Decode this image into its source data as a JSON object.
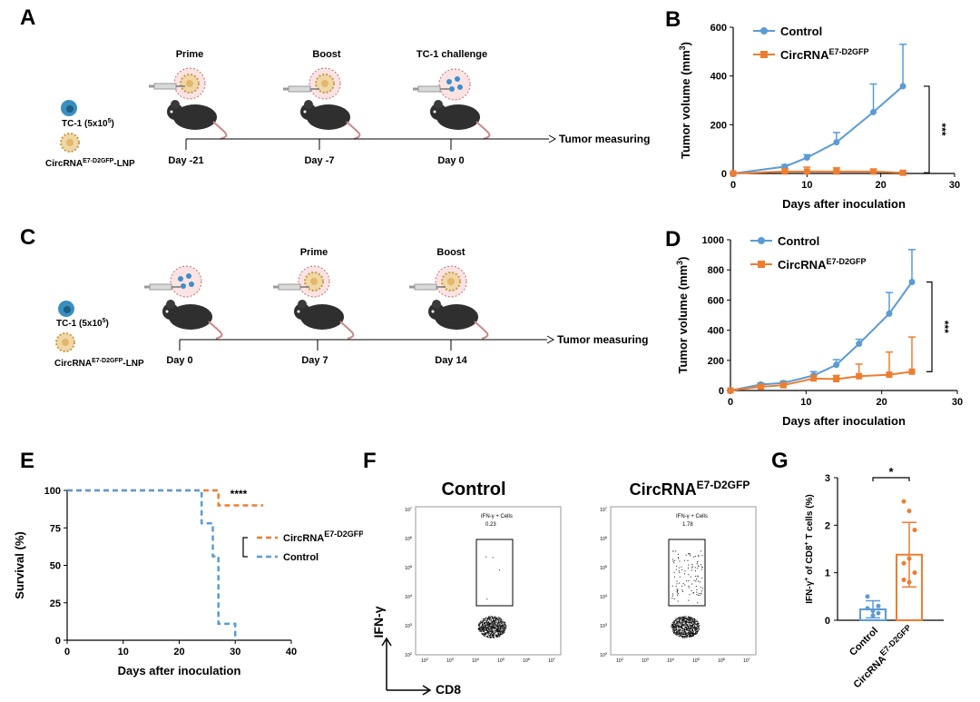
{
  "labels": {
    "a": "A",
    "b": "B",
    "c": "C",
    "d": "D",
    "e": "E",
    "f": "F",
    "g": "G"
  },
  "schematic_a": {
    "legend_cell": "TC-1 (5x10",
    "legend_cell_sup": "5",
    "legend_cell_end": ")",
    "legend_lnp": "CircRNA",
    "legend_lnp_sup": "E7-D2GFP",
    "legend_lnp_end": "-LNP",
    "steps": [
      "Prime",
      "Boost",
      "TC-1 challenge"
    ],
    "days": [
      "Day -21",
      "Day -7",
      "Day 0"
    ],
    "end": "Tumor measuring"
  },
  "schematic_c": {
    "legend_cell": "TC-1 (5x10",
    "legend_cell_sup": "5",
    "legend_cell_end": ")",
    "legend_lnp": "CircRNA",
    "legend_lnp_sup": "E7-D2GFP",
    "legend_lnp_end": "-LNP",
    "steps": [
      "",
      "Prime",
      "Boost"
    ],
    "days": [
      "Day 0",
      "Day 7",
      "Day 14"
    ],
    "end": "Tumor measuring"
  },
  "flow": {
    "control_title": "Control",
    "circ_title": "CircRNA",
    "circ_title_sup": "E7-D2GFP",
    "gate_label": "IFN-γ + Cells",
    "control_value": "0.23",
    "circ_value": "1.78",
    "y_axis": "IFN-γ",
    "x_axis": "CD8",
    "ticks": [
      "10",
      "10",
      "10",
      "10",
      "10",
      "10"
    ],
    "tick_exps": [
      "2",
      "3",
      "4",
      "5",
      "6",
      "7"
    ]
  },
  "colors": {
    "control": "#5b9bd5",
    "circ": "#ed7d31",
    "axis": "#000000"
  },
  "chart_data": [
    {
      "id": "B",
      "type": "line",
      "title": "",
      "xlabel": "Days after inoculation",
      "ylabel": "Tumor volume (mm",
      "ylabel_sup": "3",
      "ylabel_end": ")",
      "xlim": [
        0,
        30
      ],
      "ylim": [
        0,
        600
      ],
      "xticks": [
        0,
        10,
        20,
        30
      ],
      "yticks": [
        0,
        200,
        400,
        600
      ],
      "significance": "***",
      "legend_placement": "top-left",
      "series": [
        {
          "name": "Control",
          "name_sup": "",
          "x": [
            0,
            7,
            10,
            14,
            19,
            23
          ],
          "values": [
            0,
            28,
            65,
            128,
            252,
            358
          ],
          "err": [
            0,
            8,
            12,
            40,
            115,
            172
          ]
        },
        {
          "name": "CircRNA",
          "name_sup": "E7-D2GFP",
          "x": [
            0,
            7,
            10,
            14,
            19,
            23
          ],
          "values": [
            0,
            8,
            8,
            8,
            8,
            3
          ],
          "err": [
            0,
            12,
            18,
            15,
            10,
            4
          ]
        }
      ]
    },
    {
      "id": "D",
      "type": "line",
      "title": "",
      "xlabel": "Days after inoculation",
      "ylabel": "Tumor volume (mm",
      "ylabel_sup": "3",
      "ylabel_end": ")",
      "xlim": [
        0,
        30
      ],
      "ylim": [
        0,
        1000
      ],
      "xticks": [
        0,
        10,
        20,
        30
      ],
      "yticks": [
        0,
        200,
        400,
        600,
        800,
        1000
      ],
      "significance": "***",
      "legend_placement": "top-left",
      "series": [
        {
          "name": "Control",
          "name_sup": "",
          "x": [
            0,
            4,
            7,
            11,
            14,
            17,
            21,
            24
          ],
          "values": [
            0,
            40,
            50,
            100,
            170,
            310,
            510,
            720
          ],
          "err": [
            0,
            10,
            12,
            25,
            35,
            30,
            140,
            215
          ]
        },
        {
          "name": "CircRNA",
          "name_sup": "E7-D2GFP",
          "x": [
            0,
            4,
            7,
            11,
            14,
            17,
            21,
            24
          ],
          "values": [
            0,
            25,
            35,
            80,
            75,
            95,
            105,
            125
          ],
          "err": [
            0,
            8,
            10,
            20,
            25,
            80,
            150,
            230
          ]
        }
      ]
    },
    {
      "id": "E",
      "type": "line",
      "title": "",
      "xlabel": "Days after inoculation",
      "ylabel": "Survival (%)",
      "xlim": [
        0,
        40
      ],
      "ylim": [
        0,
        100
      ],
      "xticks": [
        0,
        10,
        20,
        30,
        40
      ],
      "yticks": [
        0,
        25,
        50,
        75,
        100
      ],
      "significance": "****",
      "legend_placement": "center-right",
      "series": [
        {
          "name": "CircRNA",
          "name_sup": "E7-D2GFP",
          "x": [
            0,
            27,
            27,
            35
          ],
          "values": [
            100,
            100,
            90,
            90
          ]
        },
        {
          "name": "Control",
          "name_sup": "",
          "x": [
            0,
            24,
            24,
            26,
            26,
            27,
            27,
            30,
            30
          ],
          "values": [
            100,
            100,
            78,
            78,
            56,
            56,
            11,
            11,
            0
          ]
        }
      ]
    },
    {
      "id": "G",
      "type": "bar",
      "title": "",
      "xlabel": "",
      "ylabel": "IFN-γ",
      "ylabel_sup1": "+",
      "ylabel_mid": " of CD8",
      "ylabel_sup2": "+",
      "ylabel_end": " T cells (%)",
      "ylim": [
        0,
        3
      ],
      "yticks": [
        0,
        1,
        2,
        3
      ],
      "significance": "*",
      "categories": [
        "Control",
        "CircRNA"
      ],
      "category_sups": [
        "",
        "E7-D2GFP"
      ],
      "values": [
        0.23,
        1.38
      ],
      "err": [
        0.18,
        0.68
      ],
      "points": [
        [
          0.5,
          0.2,
          0.15,
          0.25,
          0.1,
          0.3
        ],
        [
          2.5,
          2.3,
          1.9,
          1.2,
          1.3,
          1.0,
          0.85,
          0.8
        ]
      ]
    }
  ]
}
